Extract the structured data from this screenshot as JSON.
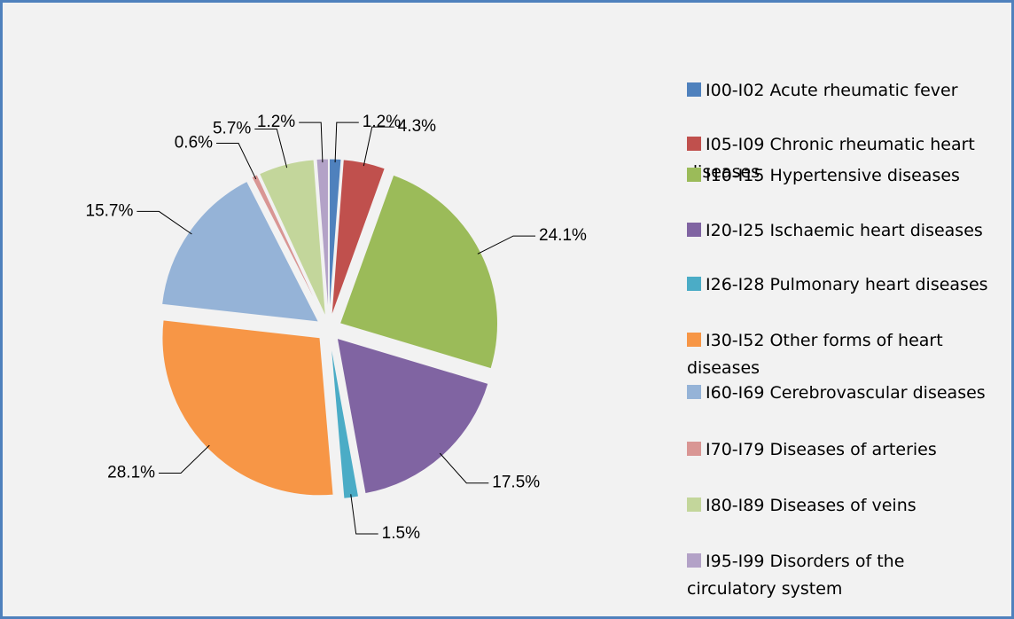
{
  "chart_data": {
    "type": "pie",
    "categories": [
      "I00-I02 Acute rheumatic fever",
      "I05-I09 Chronic rheumatic heart diseases",
      "I10-I15 Hypertensive diseases",
      "I20-I25 Ischaemic heart diseases",
      "I26-I28 Pulmonary heart diseases",
      "I30-I52 Other forms of heart diseases",
      "I60-I69 Cerebrovascular diseases",
      "I70-I79 Diseases of arteries",
      "I80-I89 Diseases of veins",
      "I95-I99 Disorders of the circulatory system"
    ],
    "values": [
      1.2,
      4.3,
      24.1,
      17.5,
      1.5,
      28.1,
      15.7,
      0.6,
      5.7,
      1.2
    ],
    "value_labels": [
      "1.2%",
      "4.3%",
      "24.1%",
      "17.5%",
      "1.5%",
      "28.1%",
      "15.7%",
      "0.6%",
      "5.7%",
      "1.2%"
    ],
    "colors": [
      "#4f81bd",
      "#c0504d",
      "#9bbb59",
      "#8064a2",
      "#4bacc6",
      "#f79646",
      "#95b3d7",
      "#d99694",
      "#c3d69b",
      "#b3a2c7"
    ],
    "legend": "right"
  }
}
